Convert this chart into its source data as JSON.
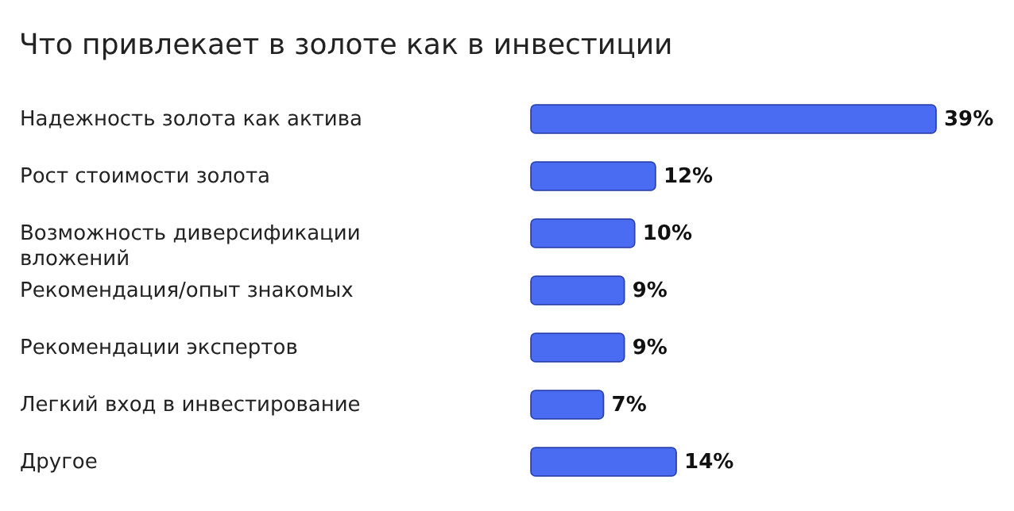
{
  "chart_data": {
    "type": "bar",
    "orientation": "horizontal",
    "title": "Что привлекает в золоте как в инвестиции",
    "categories": [
      "Надежность золота как актива",
      "Рост стоимости золота",
      "Возможность диверсификации вложений",
      "Рекомендация/опыт знакомых",
      "Рекомендации экспертов",
      "Легкий вход в инвестирование",
      "Другое"
    ],
    "values": [
      39,
      12,
      10,
      9,
      9,
      7,
      14
    ],
    "value_labels": [
      "39%",
      "12%",
      "10%",
      "9%",
      "9%",
      "7%",
      "14%"
    ],
    "color": "#4a6cf2"
  }
}
